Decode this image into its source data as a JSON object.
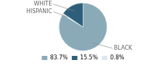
{
  "chart_data": {
    "type": "pie",
    "categories": [
      "BLACK",
      "HISPANIC",
      "WHITE"
    ],
    "values": [
      83.7,
      0.8,
      15.5
    ],
    "value_labels": [
      "83.7%",
      "0.8%",
      "15.5%"
    ],
    "colors": [
      "#8aaab8",
      "#dce8ee",
      "#2e5f7a"
    ],
    "legend": "bottom"
  }
}
